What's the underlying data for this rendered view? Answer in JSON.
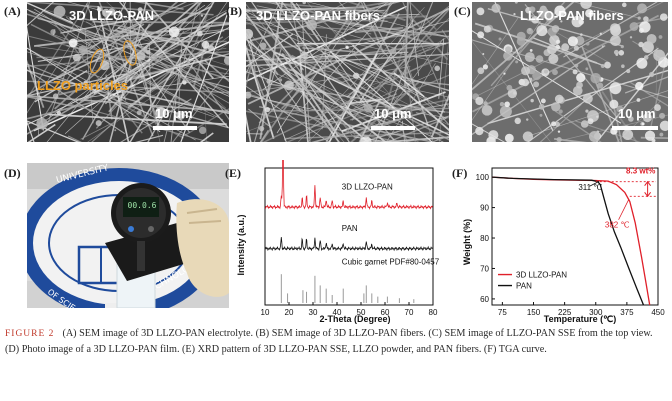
{
  "panels": {
    "a": {
      "letter": "(A)",
      "title": "3D LLZO-PAN",
      "annotation": "LLZO particles",
      "scale": "10 μm"
    },
    "b": {
      "letter": "(B)",
      "title": "3D LLZO-PAN fibers",
      "scale": "10 μm"
    },
    "c": {
      "letter": "(C)",
      "title": "LLZO-PAN fibers",
      "scale": "10 μm"
    },
    "d": {
      "letter": "(D)",
      "gauge_reading": "00.0.6"
    },
    "e": {
      "letter": "(E)"
    },
    "f": {
      "letter": "(F)"
    }
  },
  "colors": {
    "red": "#e0202a",
    "black": "#111111",
    "gray": "#9a9a9a",
    "annotation": "#f0a020",
    "caption_label": "#c0392b"
  },
  "chart_data": [
    {
      "type": "line",
      "panel": "E",
      "xlabel": "2-Theta (Degree)",
      "ylabel": "Intensity (a.u.)",
      "xlim": [
        10,
        80
      ],
      "xticks": [
        10,
        20,
        30,
        40,
        50,
        60,
        70,
        80
      ],
      "tick_labels": [
        "10",
        "20",
        "30",
        "40",
        "50",
        "60",
        "70",
        "80"
      ],
      "series": [
        {
          "name": "3D LLZO-PAN",
          "color": "#e0202a",
          "baseline": 3.0,
          "peaks": [
            [
              16.8,
              0.35
            ],
            [
              17.5,
              2.6
            ],
            [
              25.5,
              0.3
            ],
            [
              27.3,
              0.35
            ],
            [
              30.8,
              0.7
            ],
            [
              33.0,
              0.3
            ],
            [
              35.5,
              0.25
            ],
            [
              38.0,
              0.2
            ],
            [
              42.6,
              0.2
            ],
            [
              52.2,
              0.3
            ],
            [
              54.5,
              0.2
            ],
            [
              61.0,
              0.15
            ],
            [
              65.0,
              0.12
            ]
          ]
        },
        {
          "name": "PAN",
          "color": "#111111",
          "baseline": 1.7,
          "peaks": [
            [
              16.8,
              0.35
            ],
            [
              25.5,
              0.3
            ],
            [
              27.3,
              0.3
            ],
            [
              30.8,
              0.35
            ],
            [
              33.0,
              0.25
            ],
            [
              35.5,
              0.2
            ],
            [
              38.0,
              0.15
            ],
            [
              42.6,
              0.18
            ],
            [
              52.2,
              0.22
            ],
            [
              54.5,
              0.15
            ]
          ]
        },
        {
          "name": "Cubic garnet PDF#80-0457",
          "color": "#9a9a9a",
          "type": "stick",
          "baseline": 0.0,
          "peaks": [
            [
              16.8,
              0.9
            ],
            [
              19.4,
              0.3
            ],
            [
              25.8,
              0.4
            ],
            [
              27.3,
              0.35
            ],
            [
              30.8,
              0.85
            ],
            [
              33.0,
              0.55
            ],
            [
              35.5,
              0.45
            ],
            [
              38.0,
              0.25
            ],
            [
              42.6,
              0.45
            ],
            [
              51.2,
              0.3
            ],
            [
              52.2,
              0.55
            ],
            [
              54.5,
              0.3
            ],
            [
              57.0,
              0.2
            ],
            [
              61.0,
              0.2
            ],
            [
              66.0,
              0.15
            ],
            [
              72.0,
              0.12
            ]
          ]
        }
      ]
    },
    {
      "type": "line",
      "panel": "F",
      "xlabel": "Temperature (℃)",
      "ylabel": "Weight (%)",
      "xlim": [
        50,
        450
      ],
      "ylim": [
        58,
        103
      ],
      "xticks": [
        75,
        150,
        225,
        300,
        375,
        450
      ],
      "xtick_labels": [
        "75",
        "150",
        "225",
        "300",
        "375",
        "450"
      ],
      "yticks": [
        60,
        70,
        80,
        90,
        100
      ],
      "ytick_labels": [
        "60",
        "70",
        "80",
        "90",
        "100"
      ],
      "series": [
        {
          "name": "3D LLZO-PAN",
          "color": "#e0202a",
          "x": [
            50,
            100,
            150,
            200,
            250,
            300,
            330,
            350,
            370,
            382,
            395,
            410,
            420,
            430
          ],
          "y": [
            100,
            99.6,
            99.3,
            99.1,
            99.0,
            98.9,
            98.7,
            97.5,
            95,
            92,
            85,
            74,
            66,
            58
          ]
        },
        {
          "name": "PAN",
          "color": "#111111",
          "x": [
            50,
            100,
            150,
            200,
            250,
            290,
            305,
            311,
            318,
            330,
            345,
            360,
            380,
            400,
            415
          ],
          "y": [
            100,
            99.6,
            99.4,
            99.2,
            99.1,
            99.0,
            98.5,
            97.5,
            94,
            88,
            82,
            77,
            70,
            63,
            58
          ]
        }
      ],
      "annotations": [
        {
          "text": "8.3 wt%",
          "color": "#e0202a"
        },
        {
          "text": "311 ℃",
          "color": "#111111",
          "at": [
            311,
            98.0
          ]
        },
        {
          "text": "382 ℃",
          "color": "#e0202a",
          "at": [
            382,
            92.5
          ]
        }
      ]
    }
  ],
  "caption": {
    "label": "FIGURE 2",
    "text": "(A) SEM image of 3D LLZO-PAN electrolyte. (B) SEM image of 3D LLZO-PAN fibers. (C) SEM image of LLZO-PAN SSE from the top view. (D) Photo image of a 3D LLZO-PAN film. (E) XRD pattern of 3D LLZO-PAN SSE, LLZO powder, and PAN fibers. (F) TGA curve."
  }
}
